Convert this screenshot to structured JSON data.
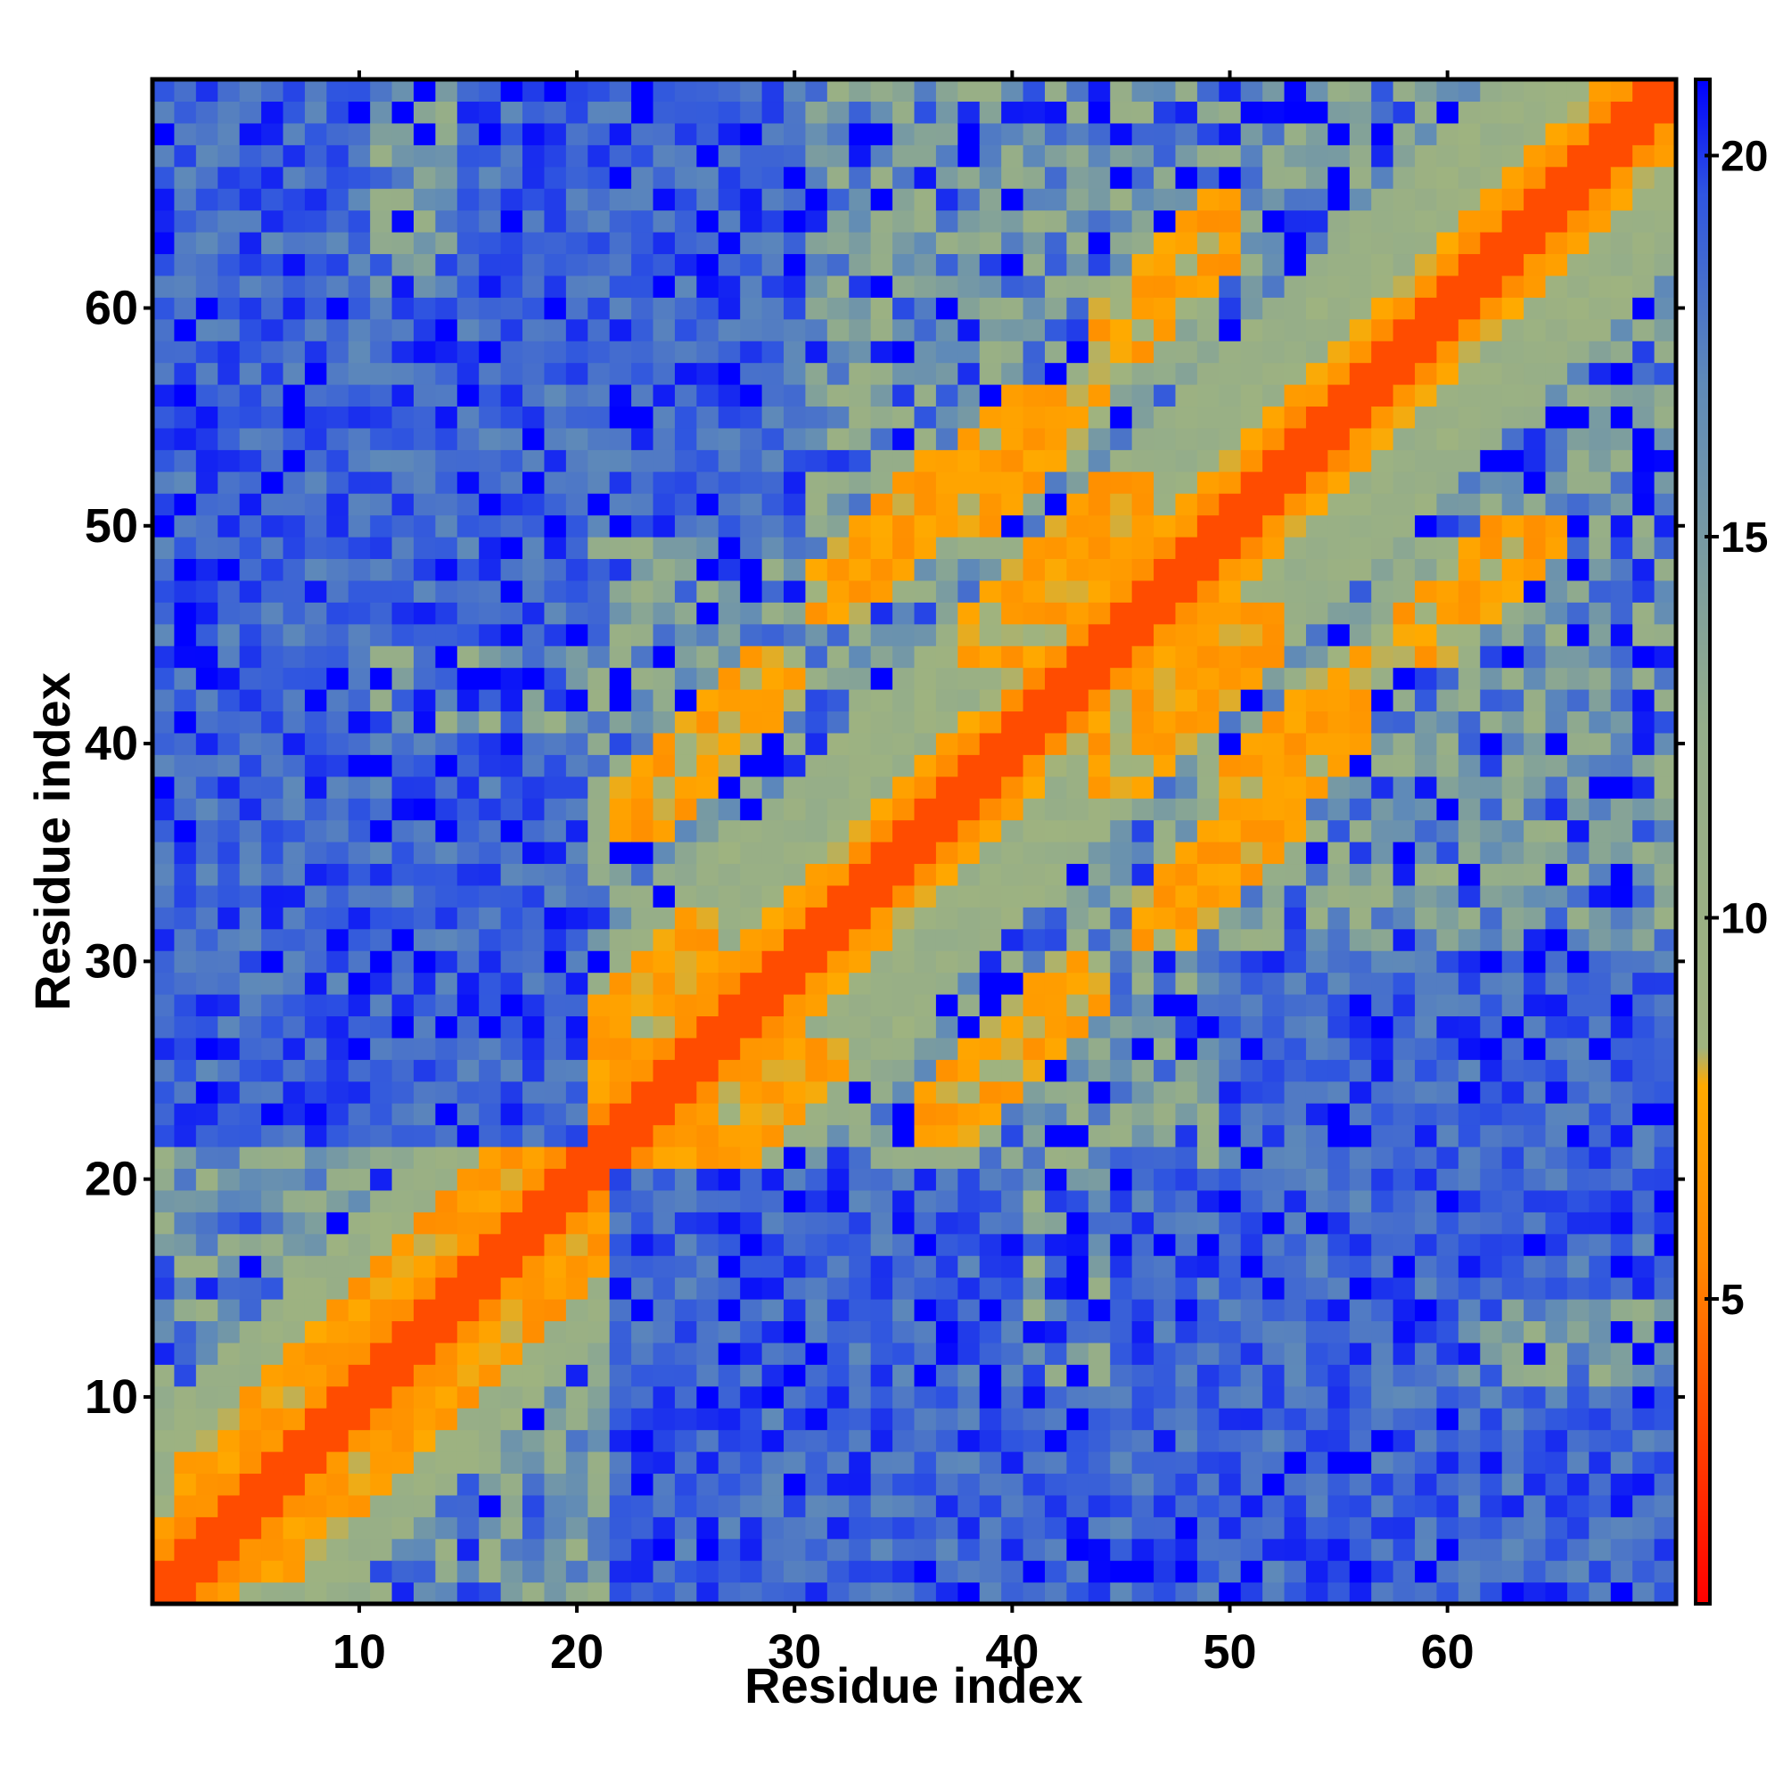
{
  "chart_data": {
    "type": "heatmap",
    "title": "",
    "xlabel": "Residue index",
    "ylabel": "Residue index",
    "n_residues": 70,
    "xlim": [
      0.5,
      70.5
    ],
    "ylim": [
      0.5,
      70.5
    ],
    "x_ticks": [
      10,
      20,
      30,
      40,
      50,
      60
    ],
    "y_ticks": [
      10,
      20,
      30,
      40,
      50,
      60
    ],
    "colorbar": {
      "range": [
        1,
        21
      ],
      "ticks": [
        5,
        10,
        15,
        20
      ],
      "stops": [
        {
          "value": 1.0,
          "color": "#ff0000"
        },
        {
          "value": 5.5,
          "color": "#ff8800"
        },
        {
          "value": 7.8,
          "color": "#ffaa00"
        },
        {
          "value": 8.3,
          "color": "#9fb37f"
        },
        {
          "value": 12.5,
          "color": "#94ad8a"
        },
        {
          "value": 17.0,
          "color": "#5f8ab8"
        },
        {
          "value": 19.5,
          "color": "#2f55e0"
        },
        {
          "value": 21.0,
          "color": "#0000ff"
        }
      ]
    },
    "legend": "colorbar-right",
    "grid": false,
    "description_of_values": "symmetric residue-residue distance map; diagonal = 0-3.8 (red), contacts orange, far pairs blue"
  }
}
